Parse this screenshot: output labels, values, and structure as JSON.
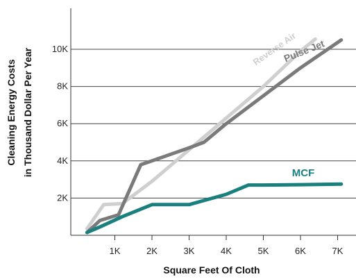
{
  "chart_data": {
    "type": "line",
    "xlabel": "Square Feet Of Cloth",
    "ylabel_line1": "Cleaning Energy Costs",
    "ylabel_line2": "in Thousand Dollar Per Year",
    "xlim": [
      0,
      7500
    ],
    "ylim": [
      0,
      11700
    ],
    "x_ticks": [
      1000,
      2000,
      3000,
      4000,
      5000,
      6000,
      7000
    ],
    "x_tick_labels": [
      "1K",
      "2K",
      "3K",
      "4K",
      "5K",
      "6K",
      "7K"
    ],
    "y_ticks": [
      2000,
      4000,
      6000,
      8000,
      10000
    ],
    "y_tick_labels": [
      "2K",
      "4K",
      "6K",
      "8K",
      "10K"
    ],
    "grid": "horizontal",
    "series": [
      {
        "name": "Reverse Air",
        "color": "#cfcfcf",
        "points": [
          [
            250,
            350
          ],
          [
            700,
            1650
          ],
          [
            1200,
            1700
          ],
          [
            2000,
            2900
          ],
          [
            3000,
            4600
          ],
          [
            4000,
            6300
          ],
          [
            5000,
            8000
          ],
          [
            6000,
            9900
          ],
          [
            6400,
            10550
          ]
        ]
      },
      {
        "name": "Pulse Jet",
        "color": "#7a7a7a",
        "points": [
          [
            250,
            150
          ],
          [
            600,
            800
          ],
          [
            1100,
            1100
          ],
          [
            1700,
            3800
          ],
          [
            2000,
            4000
          ],
          [
            3000,
            4700
          ],
          [
            3400,
            5000
          ],
          [
            4000,
            6000
          ],
          [
            5000,
            7500
          ],
          [
            6000,
            9000
          ],
          [
            7100,
            10500
          ]
        ]
      },
      {
        "name": "MCF",
        "color": "#1a7f7f",
        "points": [
          [
            250,
            150
          ],
          [
            600,
            450
          ],
          [
            1200,
            1000
          ],
          [
            2000,
            1650
          ],
          [
            3000,
            1650
          ],
          [
            4000,
            2200
          ],
          [
            4600,
            2700
          ],
          [
            5000,
            2700
          ],
          [
            6000,
            2720
          ],
          [
            7100,
            2750
          ]
        ]
      }
    ]
  }
}
